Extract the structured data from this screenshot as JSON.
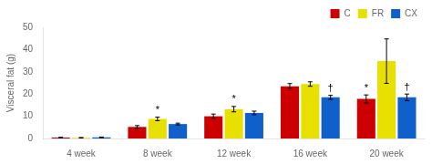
{
  "chart_data": {
    "type": "bar",
    "categories": [
      "4 week",
      "8 week",
      "12 week",
      "16 week",
      "20 week"
    ],
    "series": [
      {
        "name": "C",
        "color": "#cc0000",
        "values": [
          0.4,
          5.2,
          10.0,
          23.5,
          17.8
        ],
        "errors": [
          0.15,
          0.6,
          1.0,
          1.2,
          1.8
        ]
      },
      {
        "name": "FR",
        "color": "#e8e000",
        "values": [
          0.3,
          8.8,
          13.2,
          24.5,
          34.8
        ],
        "errors": [
          0.15,
          0.8,
          1.2,
          1.0,
          10.0
        ]
      },
      {
        "name": "CX",
        "color": "#1060cc",
        "values": [
          0.5,
          6.5,
          11.5,
          18.5,
          18.5
        ],
        "errors": [
          0.15,
          0.4,
          0.8,
          0.9,
          1.5
        ]
      }
    ],
    "ylabel": "Visceral fat (g)",
    "ylim": [
      0,
      50
    ],
    "yticks": [
      0,
      10,
      20,
      30,
      40,
      50
    ],
    "annotations": [
      {
        "category": "8 week",
        "series": "FR",
        "text": "*"
      },
      {
        "category": "12 week",
        "series": "FR",
        "text": "*"
      },
      {
        "category": "16 week",
        "series": "CX",
        "text": "†"
      },
      {
        "category": "20 week",
        "series": "C",
        "text": "*"
      },
      {
        "category": "20 week",
        "series": "CX",
        "text": "†"
      }
    ],
    "legend": "upper right",
    "grid": false
  }
}
